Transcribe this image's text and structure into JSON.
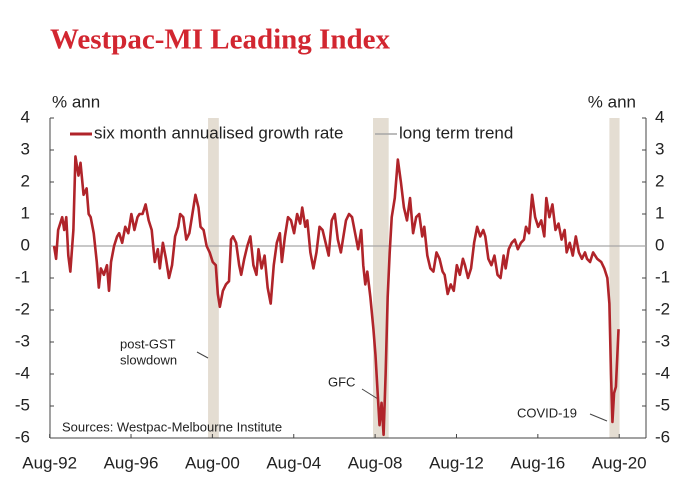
{
  "chart_data": {
    "type": "line",
    "title": "Westpac-MI Leading Index",
    "y_label": "% ann",
    "source": "Sources: Westpac-Melbourne Institute",
    "xlim": [
      1992.6,
      2021.9
    ],
    "xticks": [
      {
        "value": 1992.583,
        "label": "Aug-92"
      },
      {
        "value": 1996.583,
        "label": "Aug-96"
      },
      {
        "value": 2000.583,
        "label": "Aug-00"
      },
      {
        "value": 2004.583,
        "label": "Aug-04"
      },
      {
        "value": 2008.583,
        "label": "Aug-08"
      },
      {
        "value": 2012.583,
        "label": "Aug-12"
      },
      {
        "value": 2016.583,
        "label": "Aug-16"
      },
      {
        "value": 2020.583,
        "label": "Aug-20"
      }
    ],
    "ylim": [
      -6,
      4
    ],
    "yticks": [
      -6,
      -5,
      -4,
      -3,
      -2,
      -1,
      0,
      1,
      2,
      3,
      4
    ],
    "annotations": [
      {
        "lines": [
          "post-GST",
          "slowdown"
        ],
        "shade": [
          2000.37,
          2000.9
        ]
      },
      {
        "lines": [
          "GFC"
        ],
        "shade": [
          2008.48,
          2009.25
        ]
      },
      {
        "lines": [
          "COVID-19"
        ],
        "shade": [
          2020.1,
          2020.6
        ]
      }
    ],
    "series": [
      {
        "name": "six month annualised growth rate",
        "color": "#b0242a",
        "x": [
          1992.8,
          1992.9,
          1993.0,
          1993.2,
          1993.3,
          1993.4,
          1993.5,
          1993.6,
          1993.75,
          1993.85,
          1994.0,
          1994.1,
          1994.25,
          1994.4,
          1994.5,
          1994.6,
          1994.75,
          1994.9,
          1995.0,
          1995.1,
          1995.25,
          1995.4,
          1995.5,
          1995.6,
          1995.75,
          1995.9,
          1996.0,
          1996.15,
          1996.3,
          1996.45,
          1996.6,
          1996.75,
          1996.9,
          1997.0,
          1997.15,
          1997.3,
          1997.45,
          1997.6,
          1997.75,
          1997.9,
          1998.0,
          1998.15,
          1998.3,
          1998.45,
          1998.6,
          1998.75,
          1998.9,
          1999.0,
          1999.15,
          1999.3,
          1999.45,
          1999.6,
          1999.75,
          1999.9,
          2000.0,
          2000.15,
          2000.3,
          2000.45,
          2000.6,
          2000.75,
          2000.85,
          2000.95,
          2001.1,
          2001.25,
          2001.4,
          2001.5,
          2001.6,
          2001.75,
          2001.9,
          2002.0,
          2002.15,
          2002.3,
          2002.45,
          2002.6,
          2002.75,
          2002.85,
          2003.0,
          2003.15,
          2003.3,
          2003.45,
          2003.6,
          2003.75,
          2003.9,
          2004.0,
          2004.15,
          2004.3,
          2004.45,
          2004.6,
          2004.75,
          2004.9,
          2005.0,
          2005.15,
          2005.25,
          2005.4,
          2005.55,
          2005.7,
          2005.85,
          2006.0,
          2006.15,
          2006.3,
          2006.45,
          2006.6,
          2006.75,
          2006.9,
          2007.0,
          2007.15,
          2007.3,
          2007.45,
          2007.6,
          2007.75,
          2007.9,
          2008.0,
          2008.1,
          2008.2,
          2008.35,
          2008.5,
          2008.6,
          2008.7,
          2008.8,
          2008.9,
          2009.0,
          2009.1,
          2009.2,
          2009.3,
          2009.4,
          2009.55,
          2009.7,
          2009.85,
          2010.0,
          2010.15,
          2010.3,
          2010.45,
          2010.6,
          2010.75,
          2010.9,
          2011.0,
          2011.15,
          2011.3,
          2011.45,
          2011.6,
          2011.75,
          2011.9,
          2012.0,
          2012.15,
          2012.3,
          2012.45,
          2012.6,
          2012.75,
          2012.9,
          2013.0,
          2013.15,
          2013.3,
          2013.45,
          2013.6,
          2013.75,
          2013.9,
          2014.0,
          2014.15,
          2014.3,
          2014.45,
          2014.6,
          2014.75,
          2014.9,
          2015.0,
          2015.15,
          2015.3,
          2015.45,
          2015.6,
          2015.75,
          2015.9,
          2016.0,
          2016.15,
          2016.3,
          2016.45,
          2016.6,
          2016.75,
          2016.9,
          2017.0,
          2017.15,
          2017.3,
          2017.45,
          2017.6,
          2017.75,
          2017.9,
          2018.0,
          2018.15,
          2018.3,
          2018.45,
          2018.6,
          2018.75,
          2018.9,
          2019.0,
          2019.15,
          2019.3,
          2019.5,
          2019.7,
          2019.85,
          2020.0,
          2020.1,
          2020.18,
          2020.25,
          2020.33,
          2020.42,
          2020.55
        ],
        "values": [
          0,
          -0.4,
          0.5,
          0.9,
          0.5,
          0.9,
          -0.3,
          -0.8,
          0.5,
          2.8,
          2.2,
          2.6,
          1.6,
          1.8,
          1.0,
          0.9,
          0.4,
          -0.5,
          -1.3,
          -0.7,
          -0.9,
          -0.6,
          -1.4,
          -0.5,
          0,
          0.3,
          0.4,
          0.1,
          0.6,
          0.4,
          1.0,
          0.5,
          0.9,
          1.0,
          1.0,
          1.3,
          0.8,
          0.5,
          -0.5,
          -0.1,
          -0.7,
          0.1,
          -0.4,
          -1.0,
          -0.6,
          0.3,
          0.6,
          1.0,
          0.9,
          0.2,
          0.4,
          1.0,
          1.6,
          1.2,
          0.6,
          0.5,
          0,
          -0.2,
          -0.5,
          -0.6,
          -1.5,
          -1.9,
          -1.4,
          -1.2,
          -1.1,
          0.2,
          0.3,
          0.1,
          -0.6,
          -0.9,
          -0.4,
          0,
          0.3,
          -0.6,
          -0.9,
          -0.1,
          -0.7,
          -0.3,
          -1.3,
          -1.8,
          -0.6,
          0.1,
          0.4,
          -0.5,
          0.3,
          0.9,
          0.8,
          0.4,
          1.0,
          0.7,
          1.2,
          0.6,
          0.8,
          -0.2,
          -0.7,
          -0.2,
          0.6,
          0.5,
          0.1,
          -0.3,
          0.8,
          1.0,
          0.2,
          -0.2,
          0.2,
          0.8,
          1.0,
          0.9,
          0.4,
          -0.1,
          0.5,
          -0.6,
          -1.2,
          -0.8,
          -1.6,
          -2.6,
          -3.4,
          -4.5,
          -5.6,
          -4.9,
          -5.9,
          -4.0,
          -1.6,
          -0.2,
          0.9,
          1.5,
          2.7,
          2.0,
          1.2,
          0.8,
          1.5,
          0.4,
          0.9,
          1.0,
          0.3,
          0.6,
          -0.3,
          -0.7,
          -0.8,
          -0.2,
          -0.4,
          -0.8,
          -0.9,
          -1.5,
          -1.2,
          -1.4,
          -0.6,
          -0.9,
          -0.4,
          -0.6,
          -1.0,
          -0.7,
          0.1,
          0.6,
          0.3,
          0.5,
          0.3,
          -0.4,
          -0.6,
          -0.3,
          -0.9,
          -1.0,
          -0.3,
          -0.7,
          -0.1,
          0.1,
          0.2,
          -0.1,
          0.1,
          0.2,
          0.6,
          0.4,
          1.6,
          0.9,
          0.6,
          0.8,
          0.3,
          1.5,
          0.9,
          1.3,
          0.5,
          0.7,
          0.2,
          0.5,
          -0.2,
          0.1,
          -0.3,
          0.3,
          -0.2,
          -0.4,
          -0.2,
          -0.4,
          -0.5,
          -0.2,
          -0.4,
          -0.5,
          -0.7,
          -1.0,
          -1.8,
          -4.0,
          -5.5,
          -4.6,
          -4.4,
          -2.6
        ]
      },
      {
        "name": "long term trend",
        "color": "#a6a6a6",
        "x": [
          1992.6,
          2021.9
        ],
        "values": [
          0,
          0
        ]
      }
    ]
  }
}
